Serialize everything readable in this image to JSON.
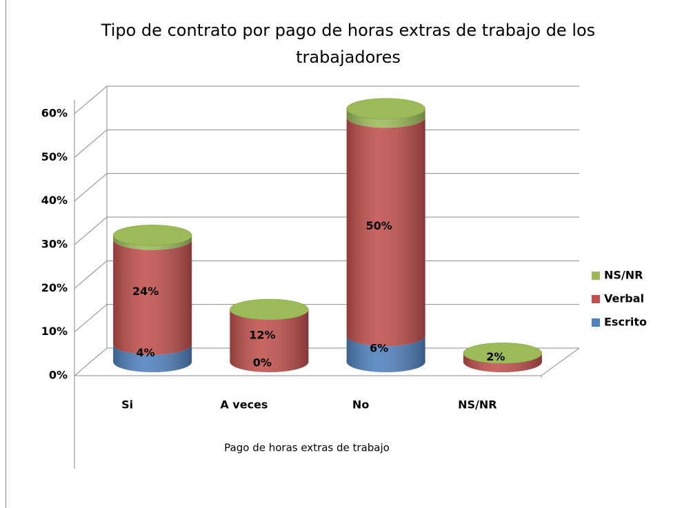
{
  "chart_data": {
    "type": "bar3d_stacked_cylinder",
    "title": [
      "Tipo de contrato por pago de horas extras  de trabajo de los",
      "trabajadores"
    ],
    "x_label": "Pago de horas extras  de trabajo",
    "categories": [
      "Si",
      "A veces",
      "No",
      "NS/NR"
    ],
    "series": [
      {
        "name": "Escrito",
        "color": "#4f81bd",
        "values": [
          4,
          0,
          6,
          0
        ],
        "value_labels": [
          "4%",
          "0%",
          "6%",
          null
        ]
      },
      {
        "name": "Verbal",
        "color": "#c0504d",
        "values": [
          24,
          12,
          50,
          2
        ],
        "value_labels": [
          "24%",
          "12%",
          "50%",
          "2%"
        ]
      },
      {
        "name": "NS/NR",
        "color": "#9bbb59",
        "values": [
          1,
          0,
          2,
          0
        ]
      }
    ],
    "ylim": [
      0,
      60
    ],
    "yticks": [
      {
        "value": 0,
        "label": "0%"
      },
      {
        "value": 10,
        "label": "10%"
      },
      {
        "value": 20,
        "label": "20%"
      },
      {
        "value": 30,
        "label": "30%"
      },
      {
        "value": 40,
        "label": "40%"
      },
      {
        "value": 50,
        "label": "50%"
      },
      {
        "value": 60,
        "label": "60%"
      }
    ],
    "grid": true,
    "legend": "right"
  }
}
